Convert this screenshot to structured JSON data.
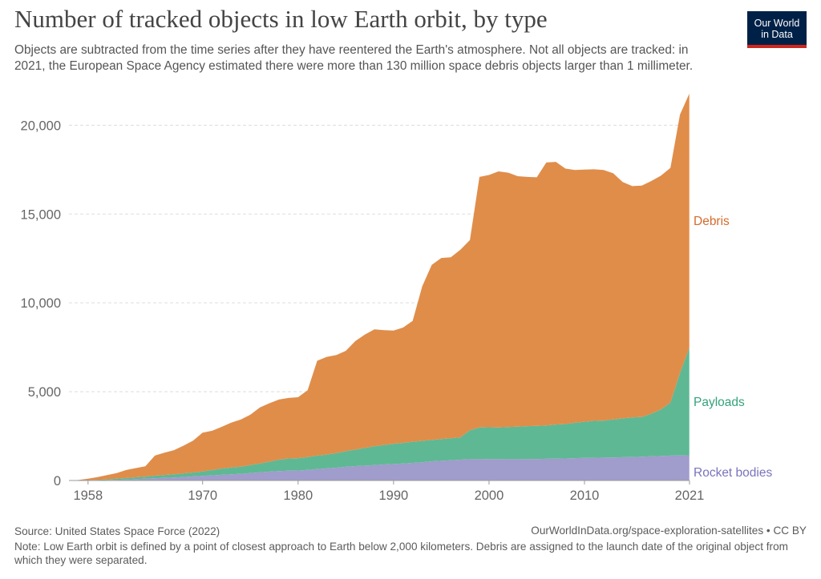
{
  "header": {
    "title": "Number of tracked objects in low Earth orbit, by type",
    "subtitle": "Objects are subtracted from the time series after they have reentered the Earth's atmosphere. Not all objects are tracked: in 2021, the European Space Agency estimated there were more than 130 million space debris objects larger than 1 millimeter.",
    "logo_line1": "Our World",
    "logo_line2": "in Data"
  },
  "footer": {
    "source": "Source: United States Space Force (2022)",
    "credit": "OurWorldInData.org/space-exploration-satellites • CC BY",
    "note": "Note: Low Earth orbit is defined by a point of closest approach to Earth below 2,000 kilometers. Debris are assigned to the launch date of the original object from which they were separated."
  },
  "colors": {
    "debris": "#e08d4a",
    "payloads": "#5fb894",
    "rocket_bodies": "#a09ccc",
    "debris_label": "#d56b2c",
    "payloads_label": "#34a37a",
    "rocket_bodies_label": "#7a73bc"
  },
  "chart_data": {
    "type": "area",
    "stacked": true,
    "title": "Number of tracked objects in low Earth orbit, by type",
    "xlabel": "",
    "ylabel": "",
    "xlim": [
      1956,
      2021
    ],
    "ylim": [
      0,
      22000
    ],
    "x_ticks": [
      1958,
      1970,
      1980,
      1990,
      2000,
      2010,
      2021
    ],
    "y_ticks": [
      0,
      5000,
      10000,
      15000,
      20000
    ],
    "y_tick_labels": [
      "0",
      "5,000",
      "10,000",
      "15,000",
      "20,000"
    ],
    "grid": "horizontal dashed",
    "legend": "inline labels at right end",
    "x": [
      1956,
      1957,
      1958,
      1959,
      1960,
      1961,
      1962,
      1963,
      1964,
      1965,
      1966,
      1967,
      1968,
      1969,
      1970,
      1971,
      1972,
      1973,
      1974,
      1975,
      1976,
      1977,
      1978,
      1979,
      1980,
      1981,
      1982,
      1983,
      1984,
      1985,
      1986,
      1987,
      1988,
      1989,
      1990,
      1991,
      1992,
      1993,
      1994,
      1995,
      1996,
      1997,
      1998,
      1999,
      2000,
      2001,
      2002,
      2003,
      2004,
      2005,
      2006,
      2007,
      2008,
      2009,
      2010,
      2011,
      2012,
      2013,
      2014,
      2015,
      2016,
      2017,
      2018,
      2019,
      2020,
      2021
    ],
    "series": [
      {
        "name": "Rocket bodies",
        "values": [
          0,
          2,
          8,
          15,
          25,
          40,
          60,
          80,
          100,
          130,
          150,
          170,
          200,
          230,
          260,
          290,
          320,
          350,
          380,
          420,
          460,
          500,
          530,
          550,
          560,
          600,
          640,
          680,
          720,
          770,
          810,
          840,
          870,
          900,
          930,
          960,
          990,
          1030,
          1080,
          1110,
          1140,
          1170,
          1200,
          1200,
          1210,
          1210,
          1200,
          1200,
          1210,
          1210,
          1220,
          1230,
          1240,
          1260,
          1270,
          1280,
          1290,
          1300,
          1310,
          1320,
          1340,
          1360,
          1380,
          1400,
          1410,
          1420
        ]
      },
      {
        "name": "Payloads",
        "values": [
          0,
          5,
          15,
          25,
          40,
          60,
          80,
          100,
          120,
          140,
          160,
          180,
          200,
          220,
          250,
          300,
          350,
          380,
          400,
          450,
          500,
          560,
          640,
          690,
          700,
          720,
          760,
          780,
          820,
          880,
          930,
          1000,
          1060,
          1100,
          1140,
          1160,
          1190,
          1200,
          1200,
          1220,
          1240,
          1260,
          1630,
          1790,
          1790,
          1780,
          1810,
          1830,
          1850,
          1870,
          1880,
          1920,
          1940,
          1990,
          2040,
          2080,
          2080,
          2140,
          2190,
          2230,
          2240,
          2400,
          2620,
          2990,
          4640,
          6080
        ]
      },
      {
        "name": "Debris",
        "values": [
          0,
          20,
          80,
          150,
          240,
          320,
          450,
          520,
          580,
          1130,
          1260,
          1360,
          1560,
          1790,
          2180,
          2210,
          2350,
          2530,
          2650,
          2830,
          3150,
          3290,
          3390,
          3410,
          3430,
          3760,
          5340,
          5500,
          5520,
          5650,
          6110,
          6380,
          6580,
          6460,
          6370,
          6490,
          6810,
          8700,
          9860,
          10200,
          10190,
          10560,
          10710,
          14100,
          14200,
          14410,
          14320,
          14100,
          14030,
          13990,
          14800,
          14790,
          14380,
          14230,
          14190,
          14160,
          14110,
          13860,
          13300,
          13020,
          13020,
          13100,
          13160,
          13210,
          14550,
          14300
        ]
      }
    ]
  }
}
